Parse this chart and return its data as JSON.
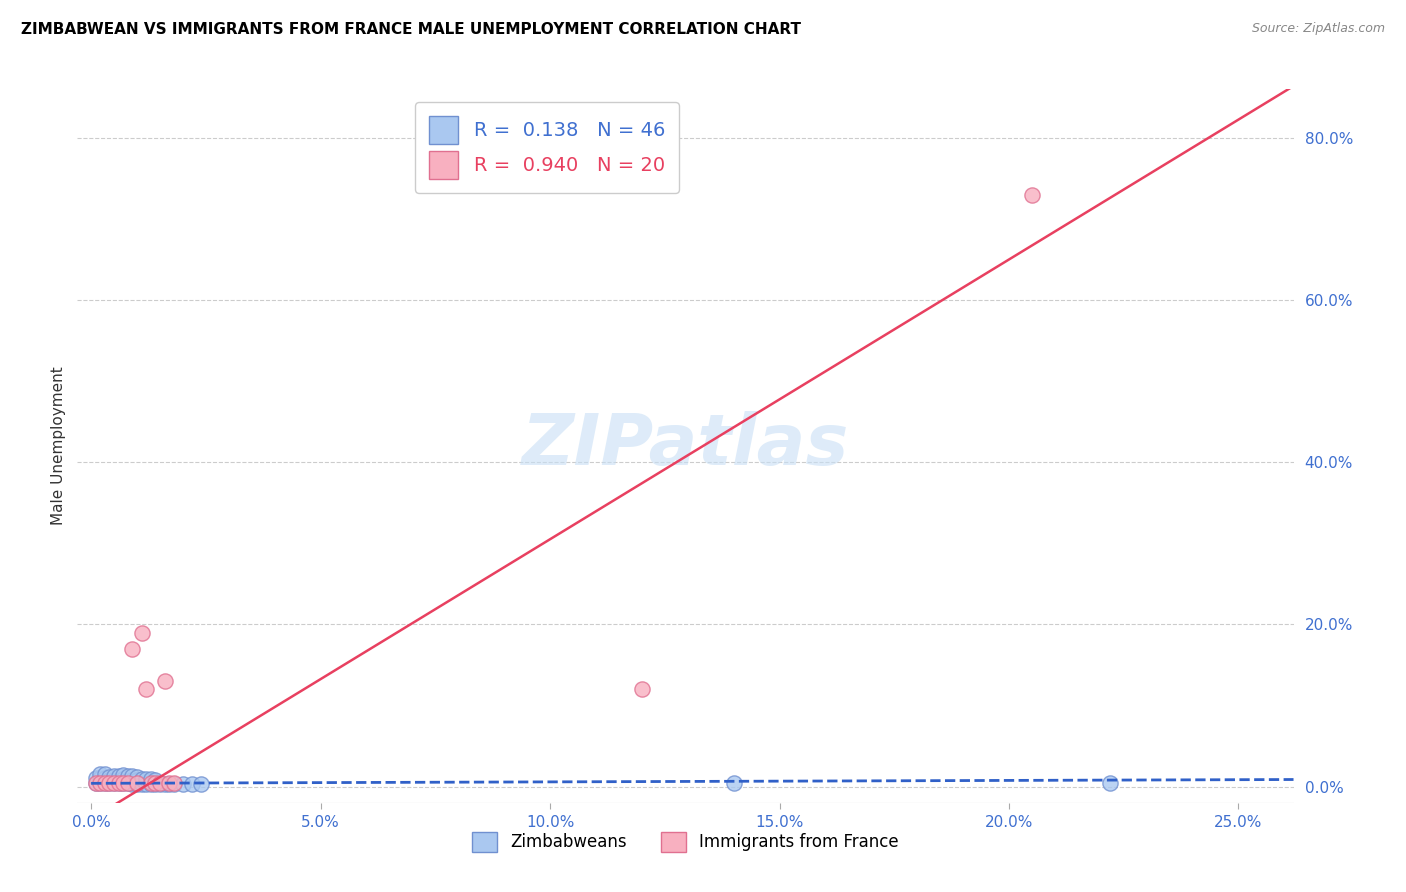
{
  "title": "ZIMBABWEAN VS IMMIGRANTS FROM FRANCE MALE UNEMPLOYMENT CORRELATION CHART",
  "source": "Source: ZipAtlas.com",
  "ylabel": "Male Unemployment",
  "x_ticks": [
    0.0,
    0.05,
    0.1,
    0.15,
    0.2,
    0.25
  ],
  "x_tick_labels": [
    "0.0%",
    "5.0%",
    "10.0%",
    "15.0%",
    "20.0%",
    "25.0%"
  ],
  "y_ticks_right": [
    0.0,
    0.2,
    0.4,
    0.6,
    0.8
  ],
  "y_tick_labels_right": [
    "0.0%",
    "20.0%",
    "40.0%",
    "60.0%",
    "80.0%"
  ],
  "xlim": [
    -0.003,
    0.262
  ],
  "ylim": [
    -0.02,
    0.86
  ],
  "blue_scatter_color": "#aac8f0",
  "blue_edge_color": "#7090d0",
  "pink_scatter_color": "#f8b0c0",
  "pink_edge_color": "#e07090",
  "blue_line_color": "#3060c8",
  "pink_line_color": "#e84060",
  "grid_color": "#cccccc",
  "R_blue": 0.138,
  "N_blue": 46,
  "R_pink": 0.94,
  "N_pink": 20,
  "legend_label_blue": "Zimbabweans",
  "legend_label_pink": "Immigrants from France",
  "watermark": "ZIPatlas",
  "zimbabwe_x": [
    0.001,
    0.001,
    0.002,
    0.002,
    0.002,
    0.003,
    0.003,
    0.003,
    0.004,
    0.004,
    0.004,
    0.005,
    0.005,
    0.005,
    0.006,
    0.006,
    0.006,
    0.007,
    0.007,
    0.007,
    0.008,
    0.008,
    0.008,
    0.009,
    0.009,
    0.009,
    0.01,
    0.01,
    0.01,
    0.011,
    0.011,
    0.012,
    0.012,
    0.013,
    0.013,
    0.014,
    0.014,
    0.015,
    0.016,
    0.017,
    0.018,
    0.02,
    0.022,
    0.024,
    0.14,
    0.222
  ],
  "zimbabwe_y": [
    0.005,
    0.01,
    0.005,
    0.01,
    0.015,
    0.005,
    0.01,
    0.015,
    0.005,
    0.008,
    0.012,
    0.004,
    0.008,
    0.013,
    0.004,
    0.008,
    0.013,
    0.004,
    0.009,
    0.014,
    0.004,
    0.008,
    0.013,
    0.003,
    0.008,
    0.013,
    0.003,
    0.008,
    0.012,
    0.003,
    0.009,
    0.003,
    0.009,
    0.003,
    0.009,
    0.003,
    0.008,
    0.003,
    0.003,
    0.003,
    0.003,
    0.003,
    0.003,
    0.003,
    0.004,
    0.005
  ],
  "france_x": [
    0.001,
    0.002,
    0.003,
    0.004,
    0.005,
    0.006,
    0.007,
    0.008,
    0.009,
    0.01,
    0.011,
    0.012,
    0.013,
    0.014,
    0.015,
    0.016,
    0.017,
    0.018,
    0.12,
    0.205
  ],
  "france_y": [
    0.005,
    0.005,
    0.005,
    0.005,
    0.005,
    0.005,
    0.005,
    0.005,
    0.17,
    0.005,
    0.19,
    0.12,
    0.005,
    0.005,
    0.005,
    0.13,
    0.005,
    0.005,
    0.12,
    0.73
  ],
  "blue_trendline_slope": 0.018,
  "blue_trendline_intercept": 0.004,
  "pink_trendline_slope": 3.45,
  "pink_trendline_intercept": -0.04
}
